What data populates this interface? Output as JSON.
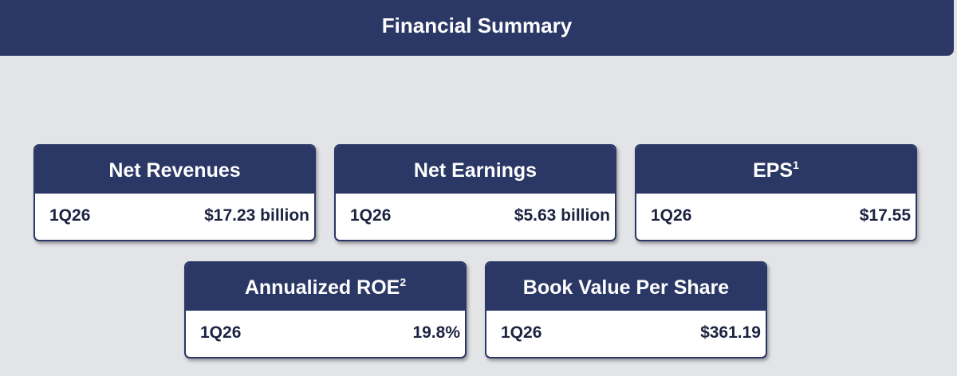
{
  "header": {
    "title": "Financial Summary"
  },
  "cards": [
    {
      "title": "Net Revenues",
      "period": "1Q26",
      "value": "$17.23 billion"
    },
    {
      "title": "Net Earnings",
      "period": "1Q26",
      "value": "$5.63 billion"
    },
    {
      "title": "EPS",
      "footnote": "1",
      "period": "1Q26",
      "value": "$17.55"
    },
    {
      "title": "Annualized ROE",
      "footnote": "2",
      "period": "1Q26",
      "value": "19.8%"
    },
    {
      "title": "Book Value Per Share",
      "period": "1Q26",
      "value": "$361.19"
    }
  ]
}
